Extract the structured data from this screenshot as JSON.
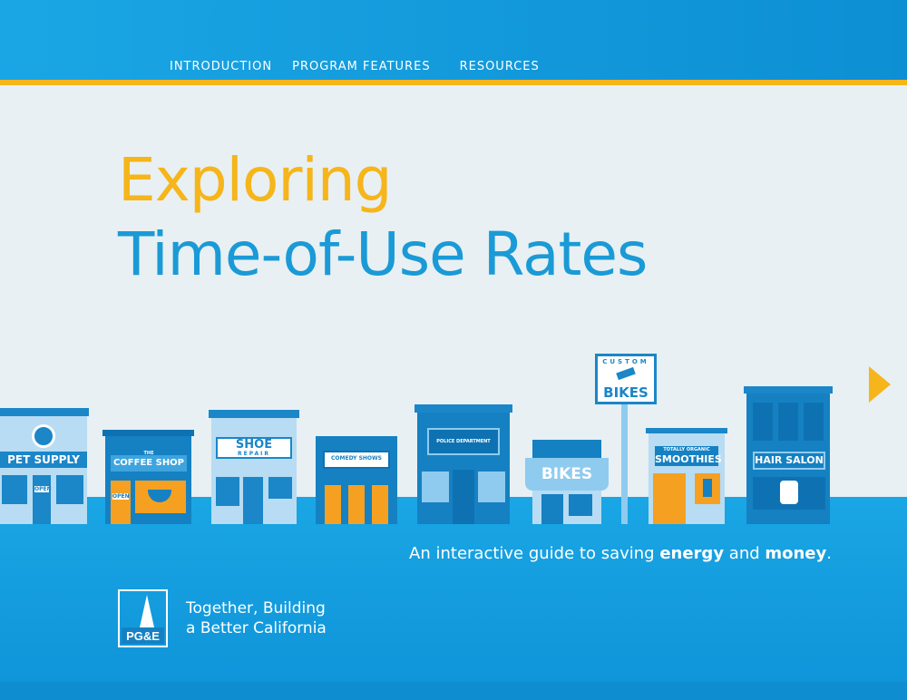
{
  "nav": {
    "items": [
      "INTRODUCTION",
      "PROGRAM FEATURES",
      "RESOURCES"
    ]
  },
  "hero": {
    "title_line1": "Exploring",
    "title_line2": "Time-of-Use Rates"
  },
  "storefronts": {
    "pet_supply": "PET SUPPLY",
    "pet_open": "OPEN",
    "coffee_the": "THE",
    "coffee_shop": "COFFEE SHOP",
    "coffee_open": "OPEN",
    "shoe": "SHOE",
    "shoe_repair": "REPAIR",
    "comedy": "COMEDY SHOWS",
    "police": "POLICE DEPARTMENT",
    "bikes_awning": "BIKES",
    "custom": "CUSTOM",
    "custom_bikes": "BIKES",
    "smoothies_small": "TOTALLY ORGANIC",
    "smoothies": "SMOOTHIES",
    "hair_salon": "HAIR SALON"
  },
  "tagline": {
    "prefix": "An interactive guide to saving ",
    "energy": "energy",
    "and": " and ",
    "money": "money",
    "period": "."
  },
  "footer": {
    "logo_text": "PG&E",
    "slogan_line1": "Together, Building",
    "slogan_line2": "a Better California"
  },
  "colors": {
    "accent_gold": "#f6b51a",
    "brand_blue": "#1a9ad6",
    "background": "#e8f0f3"
  },
  "icons": [
    "next-arrow-icon"
  ]
}
